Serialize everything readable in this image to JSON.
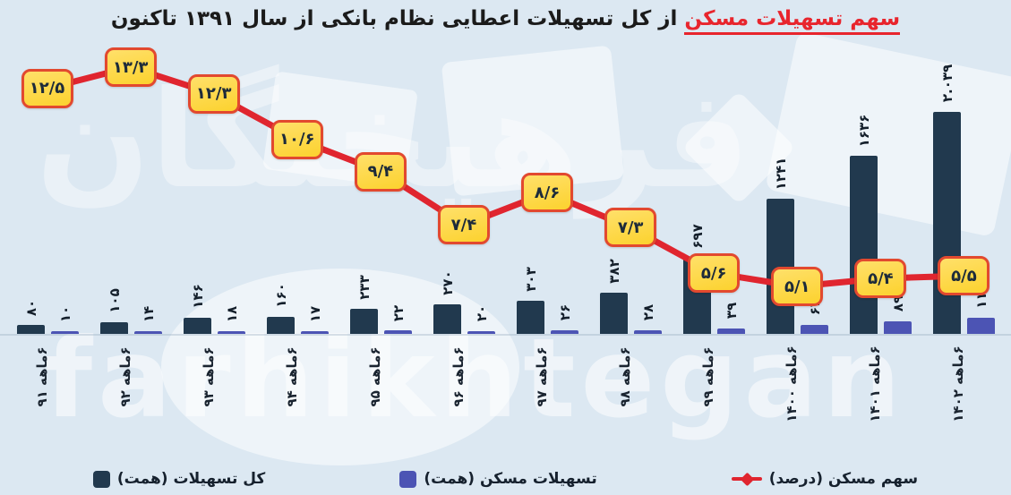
{
  "title": {
    "highlight": "سهم تسهیلات مسکن",
    "rest": " از کل تسهیلات اعطایی نظام بانکی از سال ۱۳۹۱ تاکنون"
  },
  "watermark": {
    "latin": "farhikhtegan",
    "farsi": "فرهیختگان"
  },
  "colors": {
    "background": "#dce8f2",
    "bar_total": "#21394e",
    "bar_housing": "#4c54b4",
    "line": "#e0252f",
    "badge_fill_top": "#ffe06a",
    "badge_fill_bottom": "#fcd22e",
    "badge_border": "#e2492f",
    "title_highlight": "#e8252d",
    "text": "#16212e"
  },
  "legend": [
    {
      "label": "سهم مسکن (درصد)",
      "marker": "red-line"
    },
    {
      "label": "تسهیلات مسکن (همت)",
      "marker": "blue-square"
    },
    {
      "label": "کل تسهیلات (همت)",
      "marker": "dark-square"
    }
  ],
  "chart_data": {
    "type": "bar",
    "subtype": "grouped bars + line overlay with value badges",
    "title": "سهم تسهیلات مسکن از کل تسهیلات اعطایی نظام بانکی از سال ۱۳۹۱ تاکنون",
    "categories": [
      "۶ماهه ۹۱",
      "۶ماهه ۹۲",
      "۶ماهه ۹۳",
      "۶ماهه ۹۴",
      "۶ماهه ۹۵",
      "۶ماهه ۹۶",
      "۶ماهه ۹۷",
      "۶ماهه ۹۸",
      "۶ماهه ۹۹",
      "۶ماهه ۱۴۰۰",
      "۶ماهه ۱۴۰۱",
      "۶ماهه ۱۴۰۲"
    ],
    "categories_meaning": "first 6 months of Iranian years 1391..1402",
    "series": [
      {
        "name": "کل تسهیلات (همت)",
        "type": "bar",
        "values": [
          80,
          105,
          146,
          160,
          233,
          270,
          303,
          382,
          697,
          1241,
          1636,
          2039
        ],
        "labels": [
          "۸۰",
          "۱۰۵",
          "۱۴۶",
          "۱۶۰",
          "۲۳۳",
          "۲۷۰",
          "۳۰۳",
          "۳۸۲",
          "۶۹۷",
          "۱۲۴۱",
          "۱۶۳۶",
          "۲.۰۳۹"
        ]
      },
      {
        "name": "تسهیلات مسکن (همت)",
        "type": "bar",
        "values": [
          10,
          14,
          18,
          17,
          22,
          20,
          26,
          28,
          39,
          63,
          89,
          113
        ],
        "labels": [
          "۱۰",
          "۱۴",
          "۱۸",
          "۱۷",
          "۲۲",
          "۲۰",
          "۲۶",
          "۲۸",
          "۳۹",
          "۶۳",
          "۸۹",
          "۱۱۳"
        ]
      },
      {
        "name": "سهم مسکن (درصد)",
        "type": "line",
        "values": [
          12.5,
          13.3,
          12.3,
          10.6,
          9.4,
          7.4,
          8.6,
          7.3,
          5.6,
          5.1,
          5.4,
          5.5
        ],
        "labels": [
          "۱۲/۵",
          "۱۳/۳",
          "۱۲/۳",
          "۱۰/۶",
          "۹/۴",
          "۷/۴",
          "۸/۶",
          "۷/۳",
          "۵/۶",
          "۵/۱",
          "۵/۴",
          "۵/۵"
        ]
      }
    ],
    "layout": {
      "grid": false,
      "value_axis_visible": false,
      "x_labels_rotated": true,
      "bar_value_labels_rotated": true,
      "legend_position": "bottom",
      "direction": "rtl-labels, categories plotted left-to-right oldest-to-newest"
    }
  }
}
